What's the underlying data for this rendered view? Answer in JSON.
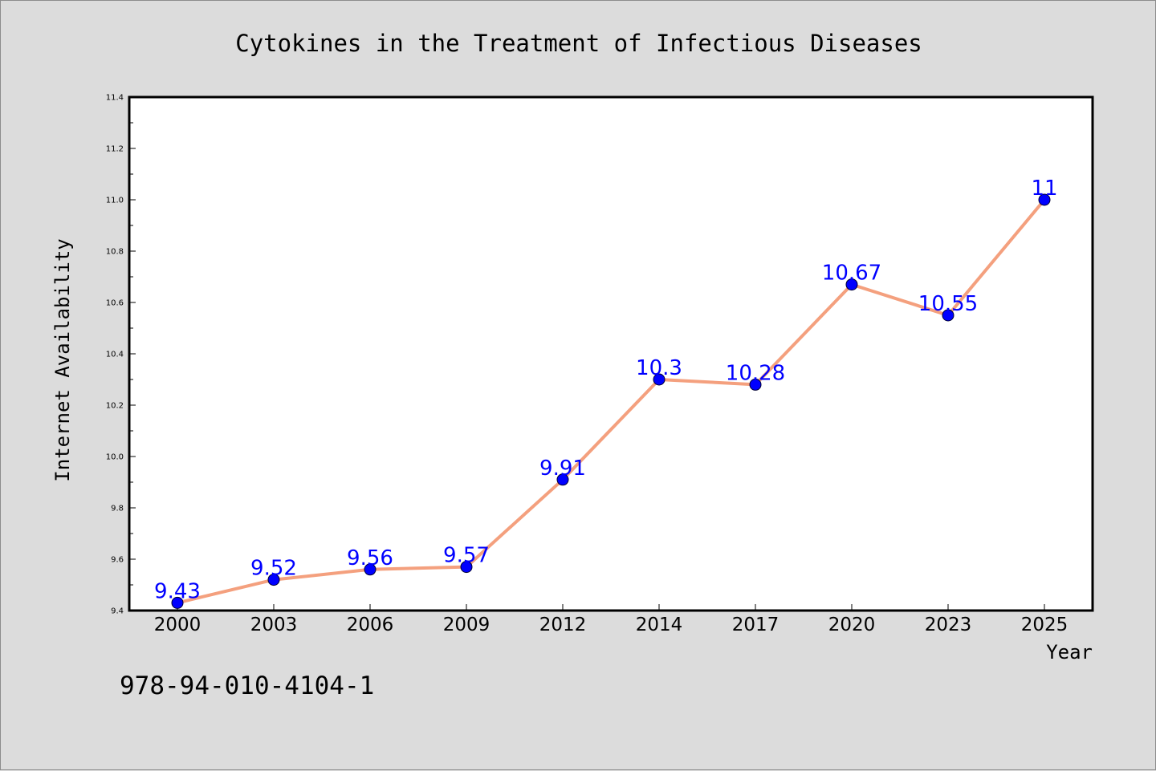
{
  "chart_data": {
    "type": "line",
    "title": "Cytokines in the Treatment of Infectious Diseases",
    "xlabel": "Year",
    "ylabel": "Internet Availability",
    "categories": [
      "2000",
      "2003",
      "2006",
      "2009",
      "2012",
      "2014",
      "2017",
      "2020",
      "2023",
      "2025"
    ],
    "series": [
      {
        "values": [
          9.43,
          9.52,
          9.56,
          9.57,
          9.91,
          10.3,
          10.28,
          10.67,
          10.55,
          11
        ],
        "data_labels": [
          "9.43",
          "9.52",
          "9.56",
          "9.57",
          "9.91",
          "10.3",
          "10.28",
          "10.67",
          "10.55",
          "11"
        ]
      }
    ],
    "ylim": [
      9.4,
      11.4
    ],
    "yticks": [
      "9.4",
      "9.6",
      "9.8",
      "10.0",
      "10.2",
      "10.4",
      "10.6",
      "10.8",
      "11.0",
      "11.2",
      "11.4"
    ],
    "grid": false,
    "legend": "none",
    "colors": {
      "line": "#f4a07e",
      "marker": "#0000ff",
      "data_label": "#0000ff",
      "plot_background": "#ffffff",
      "figure_background": "#dcdcdc"
    }
  },
  "footer_text": "978-94-010-4104-1"
}
